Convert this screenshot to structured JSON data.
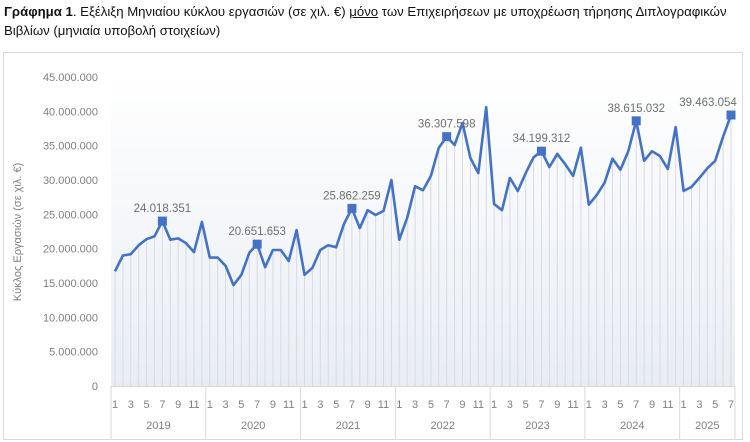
{
  "caption": {
    "bold": "Γράφημα 1",
    "text1": ". Εξέλιξη Μηνιαίου κύκλου εργασιών (σε χιλ. €) ",
    "underlined": "μόνο",
    "text2": " των Επιχειρήσεων με υποχρέωση τήρησης Διπλογραφικών Βιβλίων (μηνιαία υποβολή στοιχείων)"
  },
  "chart_data": {
    "type": "line",
    "title": "Εξέλιξη Μηνιαίου κύκλου εργασιών (σε χιλ. €) μόνο των Επιχειρήσεων με υποχρέωση τήρησης Διπλογραφικών Βιβλίων (μηνιαία υποβολή στοιχείων)",
    "xlabel": "",
    "ylabel": "Κύκλος Εργασιών (σε χιλ. €)",
    "ylim": [
      0,
      45000000
    ],
    "yticks": [
      "0",
      "5.000.000",
      "10.000.000",
      "15.000.000",
      "20.000.000",
      "25.000.000",
      "30.000.000",
      "35.000.000",
      "40.000.000",
      "45.000.000"
    ],
    "years": [
      "2019",
      "2020",
      "2021",
      "2022",
      "2023",
      "2024",
      "2025"
    ],
    "month_tick_labels": [
      "1",
      "3",
      "5",
      "7",
      "9",
      "11"
    ],
    "grid": false,
    "drop_lines": true,
    "color": "#4472c4",
    "series": [
      {
        "name": "Κύκλος Εργασιών",
        "values": [
          16700000,
          19000000,
          19200000,
          20500000,
          21400000,
          21800000,
          24018351,
          21300000,
          21500000,
          20800000,
          19500000,
          23900000,
          18700000,
          18700000,
          17500000,
          14700000,
          16200000,
          19400000,
          20651653,
          17300000,
          19800000,
          19800000,
          18200000,
          22700000,
          16200000,
          17200000,
          19800000,
          20500000,
          20200000,
          23600000,
          25862259,
          23000000,
          25600000,
          24900000,
          25500000,
          30000000,
          21300000,
          24500000,
          29100000,
          28500000,
          30600000,
          34700000,
          36307598,
          35100000,
          38300000,
          33200000,
          31000000,
          40600000,
          26500000,
          25600000,
          30300000,
          28400000,
          31000000,
          33300000,
          34199312,
          31900000,
          33800000,
          32300000,
          30600000,
          34700000,
          26400000,
          27800000,
          29600000,
          33100000,
          31500000,
          34200000,
          38615032,
          32800000,
          34200000,
          33500000,
          31600000,
          37700000,
          28400000,
          29000000,
          30300000,
          31700000,
          32800000,
          36300000,
          39463054
        ]
      }
    ],
    "annotations": [
      {
        "index": 6,
        "label": "24.018.351"
      },
      {
        "index": 18,
        "label": "20.651.653"
      },
      {
        "index": 30,
        "label": "25.862.259"
      },
      {
        "index": 42,
        "label": "36.307.598"
      },
      {
        "index": 54,
        "label": "34.199.312"
      },
      {
        "index": 66,
        "label": "38.615.032"
      },
      {
        "index": 78,
        "label": "39.463.054"
      }
    ]
  }
}
